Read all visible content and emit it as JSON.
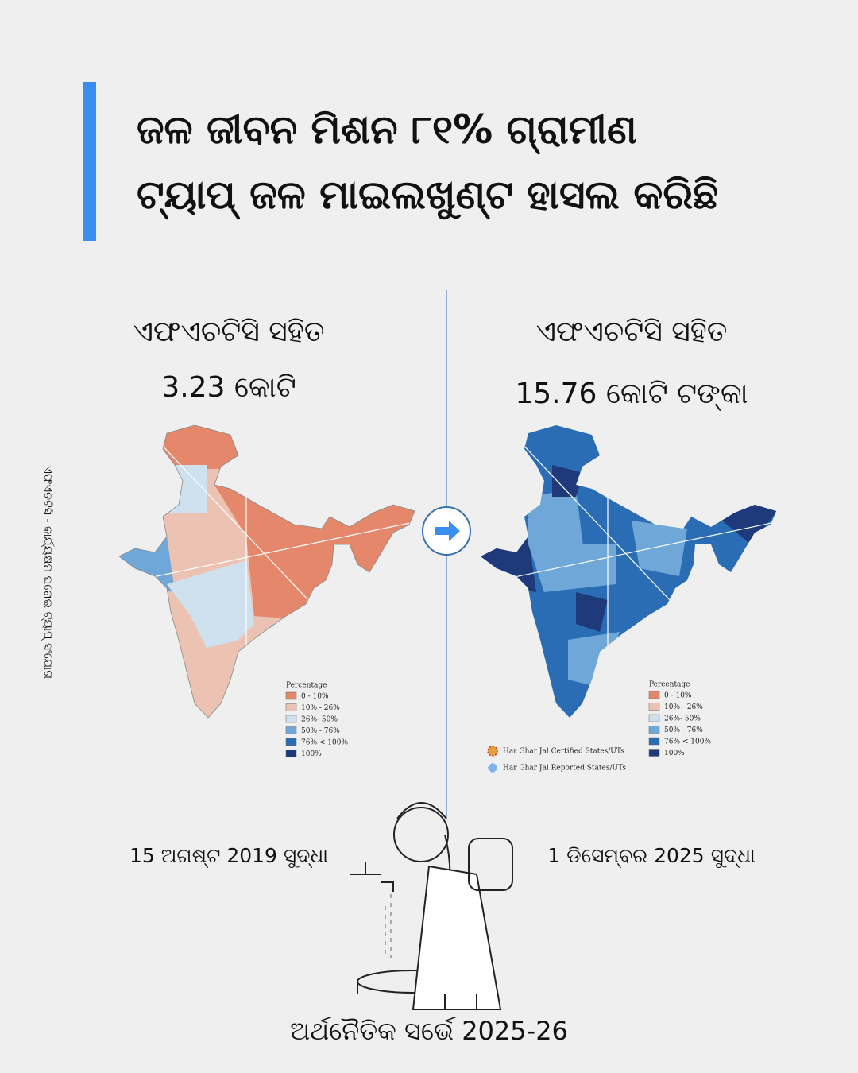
{
  "title": {
    "lines": [
      "ଜଳ ଜୀବନ ମିଶନ ୮୧% ଗ୍ରାମୀଣ",
      "ଟ୍ୟାପ୍ ଜଳ ମାଇଲଖୁଣ୍ଟ ହାସଲ କରିଛି"
    ]
  },
  "side_note": "ଏଫଏଚଟିସି - କାର୍ଯ୍ୟକ୍ଷମ ଘରୋଇ ଟ୍ୟାପ୍ ସଂଯୋଗ",
  "panels": [
    {
      "heading": "ଏଫଏଚଟିସି ସହିତ",
      "value": "3.23 କୋଟି",
      "date": "15 ଅଗଷ୍ଟ 2019 ସୁଦ୍ଧା"
    },
    {
      "heading": "ଏଫଏଚଟିସି ସହିତ",
      "value": "15.76 କୋଟି ଟଙ୍କା",
      "date": "1 ଡିସେମ୍ବର 2025 ସୁଦ୍ଧା"
    }
  ],
  "legend": {
    "title": "Percentage",
    "items": [
      {
        "label": "0 - 10%",
        "color": "#e5876b"
      },
      {
        "label": "10% - 26%",
        "color": "#ecc3b3"
      },
      {
        "label": "26%- 50%",
        "color": "#cfe1ee"
      },
      {
        "label": "50% - 76%",
        "color": "#6fa8d8"
      },
      {
        "label": "76% < 100%",
        "color": "#2a6db5"
      },
      {
        "label": "100%",
        "color": "#1e3a7a"
      }
    ]
  },
  "markers": [
    "Har Ghar Jal Certified States/UTs",
    "Har Ghar Jal Reported States/UTs"
  ],
  "source": "ଅର୍ଥନୈତିକ ସର୍ଭେ 2025-26"
}
